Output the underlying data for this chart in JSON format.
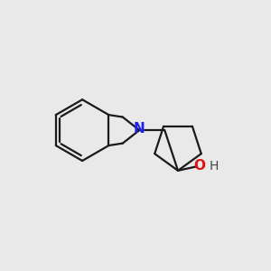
{
  "background_color": "#e9e9e9",
  "bond_color": "#1a1a1a",
  "nitrogen_color": "#2020ee",
  "oxygen_color": "#dd1111",
  "hydrogen_color": "#444444",
  "line_width": 1.6,
  "figsize": [
    3.0,
    3.0
  ],
  "dpi": 100,
  "xlim": [
    0.0,
    10.0
  ],
  "ylim": [
    0.0,
    10.0
  ]
}
